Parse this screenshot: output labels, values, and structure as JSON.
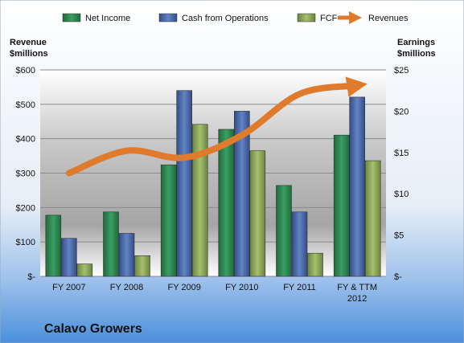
{
  "chart_data": {
    "type": "bar",
    "categories": [
      "FY 2007",
      "FY 2008",
      "FY 2009",
      "FY 2010",
      "FY 2011",
      "FY & TTM\n2012"
    ],
    "series": [
      {
        "name": "Net Income",
        "axis": "right",
        "color": "#2e8b57",
        "values": [
          7.4,
          7.8,
          13.5,
          17.8,
          11.0,
          17.1
        ]
      },
      {
        "name": "Cash from Operations",
        "axis": "right",
        "color": "#4f6fad",
        "values": [
          4.6,
          5.2,
          22.5,
          20.0,
          7.8,
          21.7
        ]
      },
      {
        "name": "FCF",
        "axis": "right",
        "color": "#8ea85a",
        "values": [
          1.5,
          2.5,
          18.4,
          15.2,
          2.8,
          14.0
        ]
      },
      {
        "name": "Revenues",
        "axis": "left",
        "type": "line",
        "color": "#e07b2e",
        "values": [
          300,
          365,
          345,
          410,
          530,
          555
        ]
      }
    ],
    "left_axis": {
      "label_line1": "Revenue",
      "label_line2": "$millions",
      "ylim": [
        0,
        600
      ],
      "ticks": [
        0,
        100,
        200,
        300,
        400,
        500,
        600
      ],
      "tick_labels": [
        "$-",
        "$100",
        "$200",
        "$300",
        "$400",
        "$500",
        "$600"
      ]
    },
    "right_axis": {
      "label_line1": "Earnings",
      "label_line2": "$millions",
      "ylim": [
        0,
        25
      ],
      "ticks": [
        0,
        5,
        10,
        15,
        20,
        25
      ],
      "tick_labels": [
        "$-",
        "$5",
        "$10",
        "$15",
        "$20",
        "$25"
      ]
    },
    "company_label": "Calavo Growers",
    "legend_position": "top",
    "grid": true
  }
}
